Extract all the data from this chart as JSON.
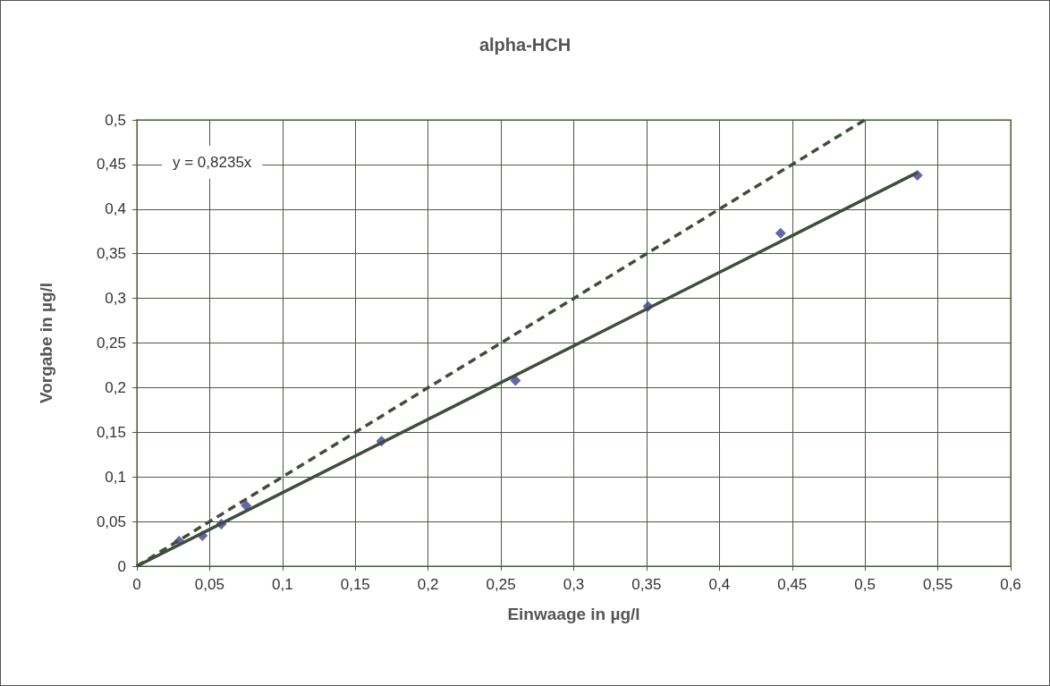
{
  "chart_data": {
    "type": "scatter",
    "title": "alpha-HCH",
    "xlabel": "Einwaage in µg/l",
    "ylabel": "Vorgabe in µg/l",
    "annotations": [
      "y = 0,8235x"
    ],
    "series": [
      {
        "color": "#3f3f96",
        "marker": "diamond",
        "x": [
          0.029,
          0.045,
          0.058,
          0.075,
          0.168,
          0.26,
          0.351,
          0.442,
          0.536
        ],
        "values": [
          0.028,
          0.034,
          0.047,
          0.068,
          0.14,
          0.208,
          0.291,
          0.373,
          0.438
        ]
      },
      {
        "type": "line",
        "color": "#3d4f3a",
        "line_style": "solid",
        "x": [
          0,
          0.536
        ],
        "values": [
          0,
          0.441
        ]
      },
      {
        "type": "line",
        "color": "#3d4f3a",
        "line_style": "dashed",
        "x": [
          0,
          0.5
        ],
        "values": [
          0,
          0.5
        ]
      }
    ],
    "xlim": [
      0,
      0.6
    ],
    "xticks": [
      0,
      {
        "value": 0.05,
        "label": "0,05"
      },
      {
        "value": 0.1,
        "label": "0,1"
      },
      {
        "value": 0.15,
        "label": "0,15"
      },
      {
        "value": 0.2,
        "label": "0,2"
      },
      {
        "value": 0.25,
        "label": "0,25"
      },
      {
        "value": 0.3,
        "label": "0,3"
      },
      {
        "value": 0.35,
        "label": "0,35"
      },
      {
        "value": 0.4,
        "label": "0,4"
      },
      {
        "value": 0.45,
        "label": "0,45"
      },
      {
        "value": 0.5,
        "label": "0,5"
      },
      {
        "value": 0.55,
        "label": "0,55"
      },
      {
        "value": 0.6,
        "label": "0,6"
      }
    ],
    "ylim": [
      0,
      0.5
    ],
    "yticks": [
      0,
      {
        "value": 0.05,
        "label": "0,05"
      },
      {
        "value": 0.1,
        "label": "0,1"
      },
      {
        "value": 0.15,
        "label": "0,15"
      },
      {
        "value": 0.2,
        "label": "0,2"
      },
      {
        "value": 0.25,
        "label": "0,25"
      },
      {
        "value": 0.3,
        "label": "0,3"
      },
      {
        "value": 0.35,
        "label": "0,35"
      },
      {
        "value": 0.4,
        "label": "0,4"
      },
      {
        "value": 0.45,
        "label": "0,45"
      },
      {
        "value": 0.5,
        "label": "0,5"
      }
    ],
    "grid": true
  }
}
